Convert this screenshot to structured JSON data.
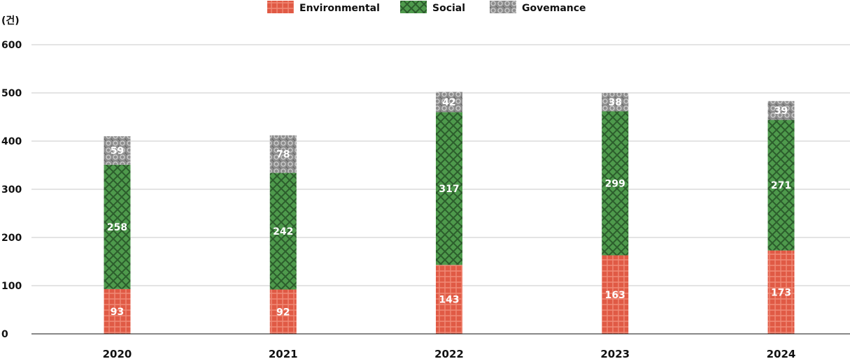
{
  "chart_data": {
    "type": "bar",
    "stacked": true,
    "unit_label": "(건)",
    "categories": [
      "2020",
      "2021",
      "2022",
      "2023",
      "2024"
    ],
    "series": [
      {
        "name": "Environmental",
        "values": [
          93,
          92,
          143,
          163,
          173
        ],
        "color": "#e05a45"
      },
      {
        "name": "Social",
        "values": [
          258,
          242,
          317,
          299,
          271
        ],
        "color": "#4e9a4c"
      },
      {
        "name": "Govemance",
        "values": [
          59,
          78,
          42,
          38,
          39
        ],
        "color": "#8e8e8e"
      }
    ],
    "yticks": [
      "0",
      "100",
      "200",
      "300",
      "400",
      "500",
      "600"
    ],
    "ylim": [
      0,
      600
    ],
    "grid": true,
    "legend_position": "top-center"
  }
}
